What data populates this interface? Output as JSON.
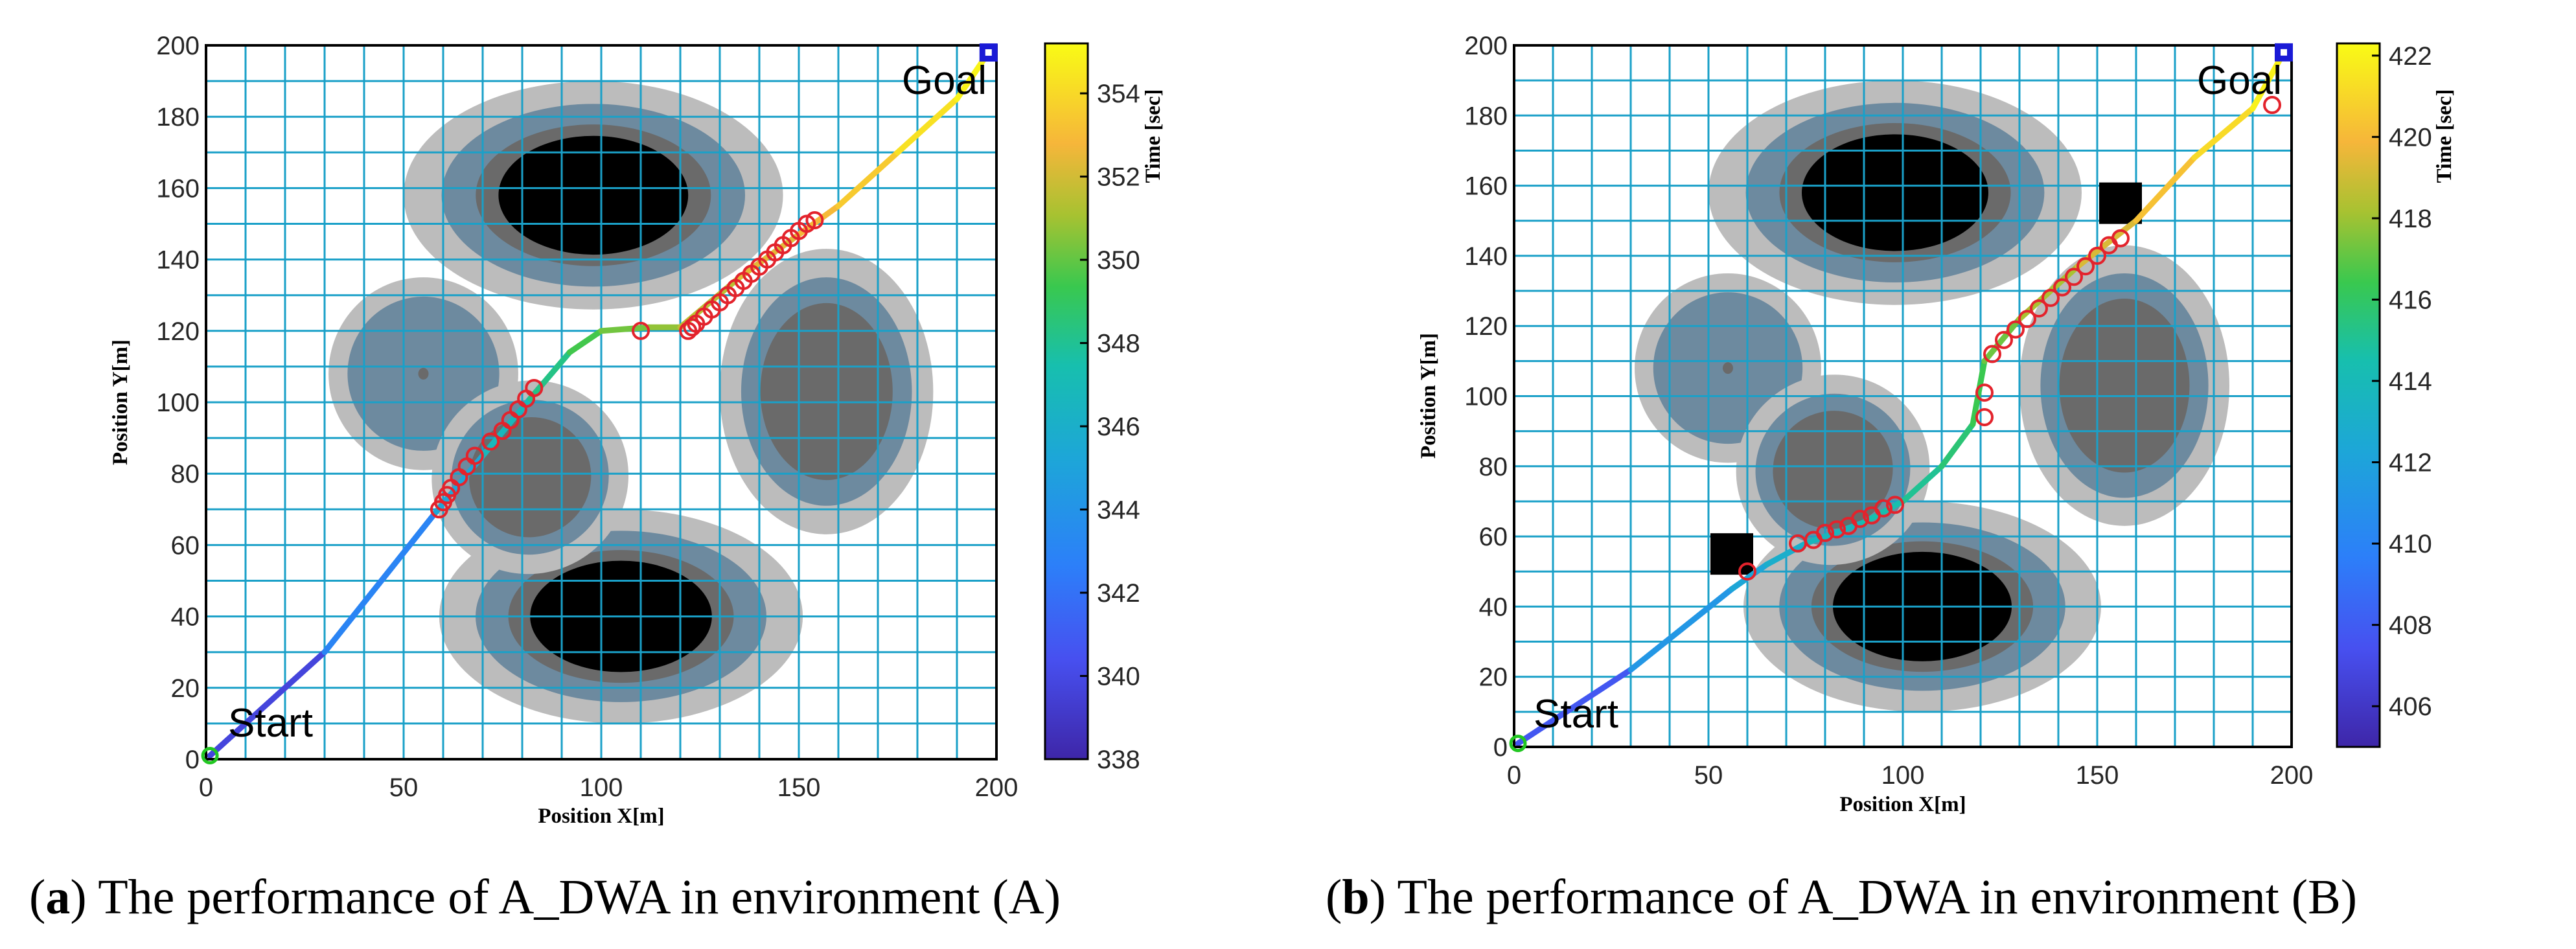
{
  "chart_data": [
    {
      "type": "path-map",
      "panel_letter": "a",
      "caption": ") The performance of A_DWA in environment (A)",
      "xlabel": "Position X[m]",
      "ylabel": "Position Y[m]",
      "xlim": [
        0,
        200
      ],
      "ylim": [
        0,
        200
      ],
      "xticks": [
        0,
        50,
        100,
        150,
        200
      ],
      "yticks": [
        0,
        20,
        40,
        60,
        80,
        100,
        120,
        140,
        160,
        180,
        200
      ],
      "grid": true,
      "start_label": "Start",
      "goal_label": "Goal",
      "start": [
        1,
        1
      ],
      "goal": [
        198,
        198
      ],
      "colorbar": {
        "label": "Time [sec]",
        "range": [
          338,
          355.2
        ],
        "ticks": [
          338,
          340,
          342,
          344,
          346,
          348,
          350,
          352,
          354
        ]
      },
      "obstacles": [
        {
          "cx": 98,
          "cy": 158,
          "rx": 48,
          "ry": 32,
          "rot": 0,
          "core": "black"
        },
        {
          "cx": 105,
          "cy": 40,
          "rx": 46,
          "ry": 30,
          "rot": 0,
          "core": "black"
        },
        {
          "cx": 55,
          "cy": 108,
          "rx": 24,
          "ry": 27,
          "rot": 0,
          "core": "light"
        },
        {
          "cx": 82,
          "cy": 79,
          "rx": 25,
          "ry": 27,
          "rot": -25,
          "core": "dark"
        },
        {
          "cx": 157,
          "cy": 103,
          "rx": 27,
          "ry": 40,
          "rot": 0,
          "core": "dark"
        }
      ],
      "dynamic_obstacles": [],
      "path_points": [
        [
          1,
          1
        ],
        [
          30,
          30
        ],
        [
          58,
          69
        ],
        [
          70,
          85
        ],
        [
          82,
          101
        ],
        [
          92,
          114
        ],
        [
          100,
          120
        ],
        [
          112,
          121
        ],
        [
          120,
          121
        ],
        [
          135,
          135
        ],
        [
          150,
          147
        ],
        [
          160,
          155
        ],
        [
          175,
          170
        ],
        [
          190,
          185
        ],
        [
          198,
          198
        ]
      ],
      "path_times": [
        338,
        341.5,
        344.5,
        346,
        347.5,
        349,
        350,
        350.5,
        351,
        352,
        352.7,
        353.1,
        353.9,
        354.7,
        355.2
      ],
      "markers": [
        [
          59,
          70
        ],
        [
          60,
          72
        ],
        [
          61,
          74
        ],
        [
          62,
          76
        ],
        [
          64,
          79
        ],
        [
          66,
          82
        ],
        [
          68,
          85
        ],
        [
          72,
          89
        ],
        [
          75,
          92
        ],
        [
          77,
          95
        ],
        [
          79,
          98
        ],
        [
          81,
          101
        ],
        [
          83,
          104
        ],
        [
          110,
          120
        ],
        [
          122,
          120
        ],
        [
          123,
          121
        ],
        [
          124,
          122
        ],
        [
          126,
          124
        ],
        [
          128,
          126
        ],
        [
          130,
          128
        ],
        [
          132,
          130
        ],
        [
          134,
          132
        ],
        [
          136,
          134
        ],
        [
          138,
          136
        ],
        [
          140,
          138
        ],
        [
          142,
          140
        ],
        [
          144,
          142
        ],
        [
          146,
          144
        ],
        [
          148,
          146
        ],
        [
          150,
          148
        ],
        [
          152,
          150
        ],
        [
          154,
          151
        ]
      ]
    },
    {
      "type": "path-map",
      "panel_letter": "b",
      "caption": ") The performance of A_DWA in environment (B)",
      "xlabel": "Position X[m]",
      "ylabel": "Position Y[m]",
      "xlim": [
        0,
        200
      ],
      "ylim": [
        0,
        200
      ],
      "xticks": [
        0,
        50,
        100,
        150,
        200
      ],
      "yticks": [
        0,
        20,
        40,
        60,
        80,
        100,
        120,
        140,
        160,
        180,
        200
      ],
      "grid": true,
      "start_label": "Start",
      "goal_label": "Goal",
      "start": [
        1,
        1
      ],
      "goal": [
        198,
        198
      ],
      "colorbar": {
        "label": "Time [sec]",
        "range": [
          405,
          422.3
        ],
        "ticks": [
          406,
          408,
          410,
          412,
          414,
          416,
          418,
          420,
          422
        ]
      },
      "obstacles": [
        {
          "cx": 98,
          "cy": 158,
          "rx": 48,
          "ry": 32,
          "rot": 0,
          "core": "black"
        },
        {
          "cx": 105,
          "cy": 40,
          "rx": 46,
          "ry": 30,
          "rot": 0,
          "core": "black"
        },
        {
          "cx": 55,
          "cy": 108,
          "rx": 24,
          "ry": 27,
          "rot": 0,
          "core": "light"
        },
        {
          "cx": 82,
          "cy": 79,
          "rx": 25,
          "ry": 27,
          "rot": -25,
          "core": "dark"
        },
        {
          "cx": 157,
          "cy": 103,
          "rx": 27,
          "ry": 40,
          "rot": 0,
          "core": "dark"
        }
      ],
      "dynamic_obstacles": [
        [
          56,
          55
        ],
        [
          156,
          155
        ]
      ],
      "path_points": [
        [
          1,
          1
        ],
        [
          30,
          22
        ],
        [
          56,
          45
        ],
        [
          65,
          52
        ],
        [
          75,
          58
        ],
        [
          90,
          64
        ],
        [
          100,
          70
        ],
        [
          110,
          80
        ],
        [
          118,
          92
        ],
        [
          121,
          110
        ],
        [
          130,
          122
        ],
        [
          145,
          137
        ],
        [
          160,
          150
        ],
        [
          175,
          168
        ],
        [
          190,
          182
        ],
        [
          198,
          198
        ]
      ],
      "path_times": [
        405,
        410.5,
        412,
        412.6,
        413.3,
        414.2,
        414.8,
        415.3,
        416,
        416.8,
        417.7,
        418.7,
        419.8,
        420.7,
        421.6,
        422.3
      ],
      "markers": [
        [
          60,
          50
        ],
        [
          73,
          58
        ],
        [
          77,
          59
        ],
        [
          80,
          61
        ],
        [
          83,
          62
        ],
        [
          86,
          63
        ],
        [
          89,
          65
        ],
        [
          92,
          66
        ],
        [
          95,
          68
        ],
        [
          98,
          69
        ],
        [
          121,
          101
        ],
        [
          121,
          94
        ],
        [
          123,
          112
        ],
        [
          126,
          116
        ],
        [
          129,
          119
        ],
        [
          132,
          122
        ],
        [
          135,
          125
        ],
        [
          138,
          128
        ],
        [
          141,
          131
        ],
        [
          144,
          134
        ],
        [
          147,
          137
        ],
        [
          150,
          140
        ],
        [
          153,
          143
        ],
        [
          156,
          145
        ],
        [
          195,
          183
        ]
      ]
    }
  ]
}
